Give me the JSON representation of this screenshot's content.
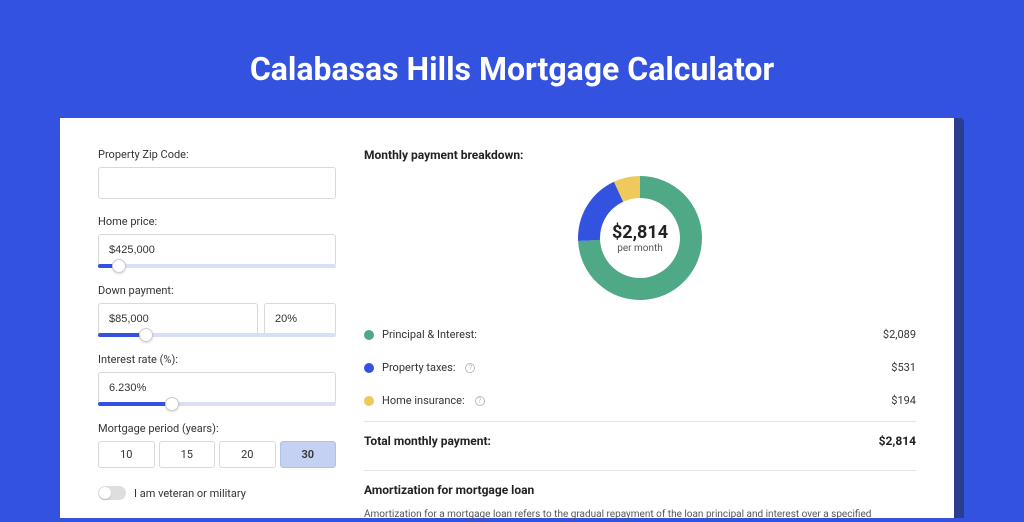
{
  "page": {
    "title": "Calabasas Hills Mortgage Calculator",
    "bg_color": "#3452e0",
    "card_outer_color": "#2b3d8f"
  },
  "form": {
    "zip": {
      "label": "Property Zip Code:",
      "value": ""
    },
    "home_price": {
      "label": "Home price:",
      "value": "$425,000",
      "slider_pct": 9
    },
    "down_payment": {
      "label": "Down payment:",
      "value": "$85,000",
      "pct_value": "20%",
      "slider_pct": 20
    },
    "interest_rate": {
      "label": "Interest rate (%):",
      "value": "6.230%",
      "slider_pct": 31
    },
    "period": {
      "label": "Mortgage period (years):",
      "options": [
        "10",
        "15",
        "20",
        "30"
      ],
      "selected": "30"
    },
    "veteran": {
      "label": "I am veteran or military",
      "checked": false
    }
  },
  "breakdown": {
    "title": "Monthly payment breakdown:",
    "center_amount": "$2,814",
    "center_sub": "per month",
    "chart": {
      "type": "donut",
      "size": 124,
      "inner_radius": 40,
      "outer_radius": 62,
      "background_color": "#ffffff",
      "slices": [
        {
          "value": 2089,
          "color": "#4fa886"
        },
        {
          "value": 531,
          "color": "#3452e0"
        },
        {
          "value": 194,
          "color": "#efc95b"
        }
      ]
    },
    "items": [
      {
        "label": "Principal & Interest:",
        "color": "#4fa886",
        "amount": "$2,089",
        "info": false
      },
      {
        "label": "Property taxes:",
        "color": "#3452e0",
        "amount": "$531",
        "info": true
      },
      {
        "label": "Home insurance:",
        "color": "#efc95b",
        "amount": "$194",
        "info": true
      }
    ],
    "total": {
      "label": "Total monthly payment:",
      "amount": "$2,814"
    }
  },
  "amortization": {
    "title": "Amortization for mortgage loan",
    "text": "Amortization for a mortgage loan refers to the gradual repayment of the loan principal and interest over a specified"
  }
}
